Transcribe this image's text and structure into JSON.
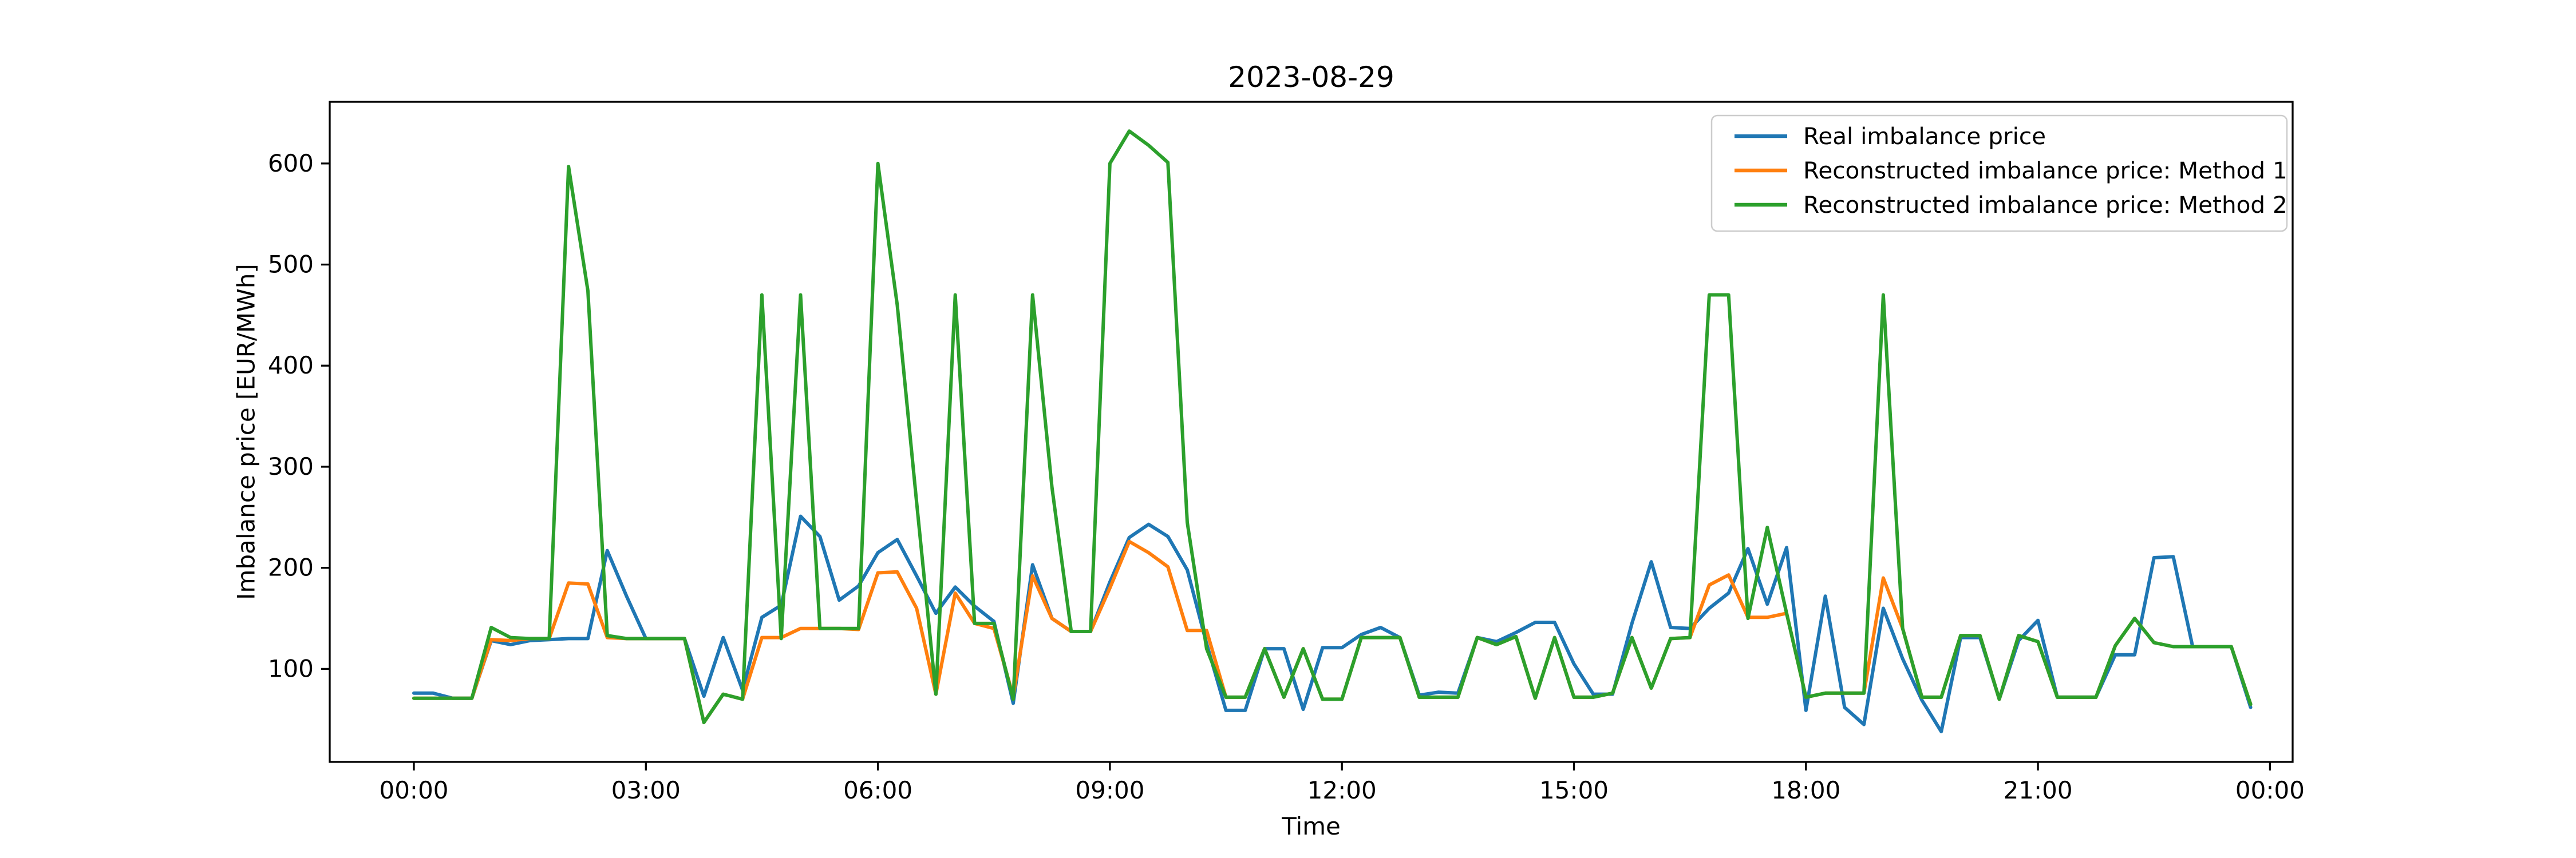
{
  "figure": {
    "title": "2023-08-29",
    "background": "#ffffff"
  },
  "axes": {
    "xlabel": "Time",
    "ylabel": "Imbalance price [EUR/MWh]",
    "x_tick_labels": [
      "00:00",
      "03:00",
      "06:00",
      "09:00",
      "12:00",
      "15:00",
      "18:00",
      "21:00",
      "00:00"
    ],
    "y_tick_labels": [
      "100",
      "200",
      "300",
      "400",
      "500",
      "600"
    ]
  },
  "legend": {
    "position": "upper right",
    "items": [
      {
        "label": "Real imbalance price",
        "color": "#1f77b4"
      },
      {
        "label": "Reconstructed imbalance price: Method 1",
        "color": "#ff7f0e"
      },
      {
        "label": "Reconstructed imbalance price: Method 2",
        "color": "#2ca02c"
      }
    ]
  },
  "chart_data": {
    "type": "line",
    "title": "2023-08-29",
    "xlabel": "Time",
    "ylabel": "Imbalance price [EUR/MWh]",
    "grid": false,
    "legend_position": "upper right",
    "x_tick_hours": [
      0,
      3,
      6,
      9,
      12,
      15,
      18,
      21,
      24
    ],
    "x_tick_labels": [
      "00:00",
      "03:00",
      "06:00",
      "09:00",
      "12:00",
      "15:00",
      "18:00",
      "21:00",
      "00:00"
    ],
    "y_ticks": [
      100,
      200,
      300,
      400,
      500,
      600
    ],
    "ylim": [
      8,
      661
    ],
    "time_step_minutes": 15,
    "times": [
      "00:00",
      "00:15",
      "00:30",
      "00:45",
      "01:00",
      "01:15",
      "01:30",
      "01:45",
      "02:00",
      "02:15",
      "02:30",
      "02:45",
      "03:00",
      "03:15",
      "03:30",
      "03:45",
      "04:00",
      "04:15",
      "04:30",
      "04:45",
      "05:00",
      "05:15",
      "05:30",
      "05:45",
      "06:00",
      "06:15",
      "06:30",
      "06:45",
      "07:00",
      "07:15",
      "07:30",
      "07:45",
      "08:00",
      "08:15",
      "08:30",
      "08:45",
      "09:00",
      "09:15",
      "09:30",
      "09:45",
      "10:00",
      "10:15",
      "10:30",
      "10:45",
      "11:00",
      "11:15",
      "11:30",
      "11:45",
      "12:00",
      "12:15",
      "12:30",
      "12:45",
      "13:00",
      "13:15",
      "13:30",
      "13:45",
      "14:00",
      "14:15",
      "14:30",
      "14:45",
      "15:00",
      "15:15",
      "15:30",
      "15:45",
      "16:00",
      "16:15",
      "16:30",
      "16:45",
      "17:00",
      "17:15",
      "17:30",
      "17:45",
      "18:00",
      "18:15",
      "18:30",
      "18:45",
      "19:00",
      "19:15",
      "19:30",
      "19:45",
      "20:00",
      "20:15",
      "20:30",
      "20:45",
      "21:00",
      "21:15",
      "21:30",
      "21:45",
      "22:00",
      "22:15",
      "22:30",
      "22:45",
      "23:00",
      "23:15",
      "23:30",
      "23:45"
    ],
    "series": [
      {
        "name": "Real imbalance price",
        "color": "#1f77b4",
        "values": [
          76,
          76,
          71,
          71,
          128,
          124,
          128,
          129,
          130,
          130,
          217,
          172,
          130,
          130,
          130,
          73,
          131,
          79,
          151,
          163,
          251,
          231,
          168,
          182,
          215,
          228,
          192,
          155,
          181,
          162,
          147,
          66,
          203,
          150,
          137,
          137,
          186,
          230,
          243,
          231,
          198,
          125,
          59,
          59,
          120,
          120,
          60,
          121,
          121,
          134,
          141,
          131,
          74,
          77,
          76,
          131,
          127,
          136,
          146,
          146,
          105,
          75,
          75,
          145,
          206,
          141,
          140,
          160,
          175,
          219,
          164,
          220,
          59,
          172,
          62,
          45,
          160,
          110,
          69,
          38,
          131,
          131,
          70,
          128,
          148,
          72,
          72,
          72,
          114,
          114,
          210,
          211,
          122,
          122,
          122,
          62
        ]
      },
      {
        "name": "Reconstructed imbalance price: Method 1",
        "color": "#ff7f0e",
        "values": [
          71,
          71,
          71,
          71,
          129,
          128,
          130,
          130,
          185,
          184,
          131,
          130,
          130,
          130,
          130,
          47,
          75,
          70,
          131,
          131,
          140,
          140,
          140,
          139,
          195,
          196,
          160,
          75,
          175,
          145,
          140,
          73,
          192,
          150,
          137,
          137,
          180,
          226,
          215,
          201,
          138,
          138,
          72,
          72,
          120,
          72,
          120,
          70,
          70,
          131,
          131,
          131,
          72,
          72,
          72,
          131,
          124,
          132,
          71,
          131,
          72,
          72,
          76,
          131,
          81,
          130,
          131,
          183,
          193,
          151,
          151,
          155,
          72,
          76,
          76,
          76,
          190,
          140,
          72,
          72,
          133,
          133,
          70,
          133,
          127,
          72,
          72,
          72,
          123,
          150,
          126,
          122,
          122,
          122,
          122,
          65
        ]
      },
      {
        "name": "Reconstructed imbalance price: Method 2",
        "color": "#2ca02c",
        "values": [
          71,
          71,
          71,
          71,
          141,
          131,
          130,
          130,
          597,
          474,
          133,
          130,
          130,
          130,
          130,
          47,
          75,
          70,
          470,
          130,
          470,
          140,
          140,
          140,
          600,
          460,
          265,
          75,
          470,
          145,
          145,
          70,
          470,
          280,
          137,
          137,
          600,
          632,
          618,
          601,
          245,
          120,
          72,
          72,
          120,
          72,
          120,
          70,
          70,
          131,
          131,
          131,
          72,
          72,
          72,
          131,
          124,
          132,
          71,
          131,
          72,
          72,
          76,
          131,
          81,
          130,
          131,
          470,
          470,
          150,
          240,
          155,
          72,
          76,
          76,
          76,
          470,
          140,
          72,
          72,
          133,
          133,
          70,
          133,
          127,
          72,
          72,
          72,
          123,
          150,
          126,
          122,
          122,
          122,
          122,
          65
        ]
      }
    ]
  }
}
